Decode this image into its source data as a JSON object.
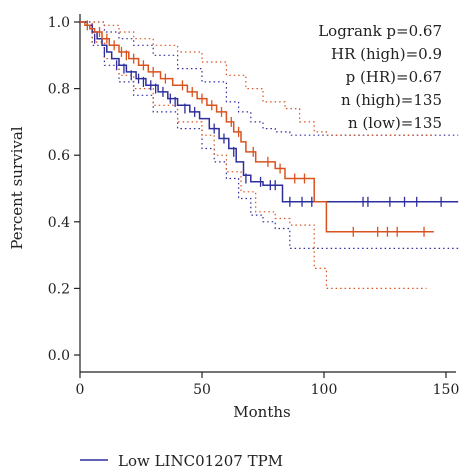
{
  "chart_data": {
    "type": "line",
    "xlabel": "Months",
    "ylabel": "Percent survival",
    "xlim": [
      0,
      150
    ],
    "ylim": [
      0,
      1.0
    ],
    "xticks": [
      0,
      50,
      100,
      150
    ],
    "yticks": [
      0.0,
      0.2,
      0.4,
      0.6,
      0.8,
      1.0
    ],
    "xtick_labels": [
      "0",
      "50",
      "100",
      "150"
    ],
    "ytick_labels": [
      "0.0",
      "0.2",
      "0.4",
      "0.6",
      "0.8",
      "1.0"
    ],
    "annotations": [
      "Logrank p=0.67",
      "HR (high)=0.9",
      "p (HR)=0.67",
      "n (high)=135",
      "n (low)=135"
    ],
    "legend": {
      "entries": [
        "Low LINC01207 TPM"
      ],
      "placement": "bottom"
    },
    "colors": {
      "low": "#2e2e9c",
      "high": "#d9531e",
      "axis": "#222222"
    },
    "series": [
      {
        "name": "Low LINC01207 TPM",
        "color": "#2e2e9c",
        "steps": [
          [
            0,
            1.0
          ],
          [
            3,
            0.99
          ],
          [
            5,
            0.97
          ],
          [
            7,
            0.95
          ],
          [
            9,
            0.93
          ],
          [
            11,
            0.91
          ],
          [
            13,
            0.89
          ],
          [
            16,
            0.87
          ],
          [
            19,
            0.85
          ],
          [
            23,
            0.83
          ],
          [
            27,
            0.81
          ],
          [
            32,
            0.79
          ],
          [
            36,
            0.77
          ],
          [
            40,
            0.75
          ],
          [
            45,
            0.73
          ],
          [
            49,
            0.71
          ],
          [
            53,
            0.68
          ],
          [
            57,
            0.65
          ],
          [
            61,
            0.62
          ],
          [
            64,
            0.58
          ],
          [
            67,
            0.54
          ],
          [
            70,
            0.52
          ],
          [
            75,
            0.51
          ],
          [
            83,
            0.46
          ],
          [
            155,
            0.46
          ]
        ],
        "censored": [
          [
            6,
            0.95
          ],
          [
            10,
            0.91
          ],
          [
            15,
            0.87
          ],
          [
            18,
            0.86
          ],
          [
            21,
            0.84
          ],
          [
            24,
            0.83
          ],
          [
            26,
            0.82
          ],
          [
            29,
            0.81
          ],
          [
            31,
            0.8
          ],
          [
            34,
            0.79
          ],
          [
            37,
            0.77
          ],
          [
            39,
            0.76
          ],
          [
            43,
            0.74
          ],
          [
            47,
            0.73
          ],
          [
            55,
            0.68
          ],
          [
            59,
            0.65
          ],
          [
            63,
            0.61
          ],
          [
            68,
            0.53
          ],
          [
            74,
            0.52
          ],
          [
            78,
            0.51
          ],
          [
            80,
            0.51
          ],
          [
            86,
            0.46
          ],
          [
            91,
            0.46
          ],
          [
            95,
            0.46
          ],
          [
            116,
            0.46
          ],
          [
            118,
            0.46
          ],
          [
            127,
            0.46
          ],
          [
            133,
            0.46
          ],
          [
            138,
            0.46
          ],
          [
            148,
            0.46
          ]
        ],
        "ci_upper": [
          [
            0,
            1.0
          ],
          [
            5,
            1.0
          ],
          [
            10,
            0.97
          ],
          [
            16,
            0.95
          ],
          [
            22,
            0.93
          ],
          [
            30,
            0.9
          ],
          [
            40,
            0.86
          ],
          [
            50,
            0.82
          ],
          [
            60,
            0.76
          ],
          [
            65,
            0.73
          ],
          [
            70,
            0.7
          ],
          [
            75,
            0.68
          ],
          [
            80,
            0.67
          ],
          [
            86,
            0.66
          ],
          [
            155,
            0.66
          ]
        ],
        "ci_lower": [
          [
            0,
            1.0
          ],
          [
            5,
            0.93
          ],
          [
            10,
            0.87
          ],
          [
            16,
            0.82
          ],
          [
            22,
            0.78
          ],
          [
            30,
            0.73
          ],
          [
            40,
            0.68
          ],
          [
            50,
            0.62
          ],
          [
            55,
            0.58
          ],
          [
            60,
            0.53
          ],
          [
            65,
            0.47
          ],
          [
            70,
            0.42
          ],
          [
            75,
            0.4
          ],
          [
            80,
            0.38
          ],
          [
            86,
            0.32
          ],
          [
            155,
            0.32
          ]
        ]
      },
      {
        "name": "",
        "color": "#d9531e",
        "steps": [
          [
            0,
            1.0
          ],
          [
            2,
            0.99
          ],
          [
            4,
            0.98
          ],
          [
            6,
            0.97
          ],
          [
            9,
            0.95
          ],
          [
            12,
            0.93
          ],
          [
            16,
            0.91
          ],
          [
            20,
            0.89
          ],
          [
            24,
            0.87
          ],
          [
            28,
            0.85
          ],
          [
            33,
            0.83
          ],
          [
            38,
            0.81
          ],
          [
            44,
            0.79
          ],
          [
            48,
            0.77
          ],
          [
            52,
            0.75
          ],
          [
            56,
            0.73
          ],
          [
            60,
            0.7
          ],
          [
            63,
            0.67
          ],
          [
            66,
            0.64
          ],
          [
            68,
            0.61
          ],
          [
            72,
            0.58
          ],
          [
            80,
            0.56
          ],
          [
            84,
            0.53
          ],
          [
            96,
            0.46
          ],
          [
            101,
            0.37
          ],
          [
            145,
            0.37
          ]
        ],
        "censored": [
          [
            3,
            0.99
          ],
          [
            8,
            0.97
          ],
          [
            11,
            0.95
          ],
          [
            14,
            0.93
          ],
          [
            17,
            0.91
          ],
          [
            19,
            0.9
          ],
          [
            22,
            0.89
          ],
          [
            26,
            0.87
          ],
          [
            30,
            0.85
          ],
          [
            35,
            0.83
          ],
          [
            42,
            0.81
          ],
          [
            46,
            0.79
          ],
          [
            50,
            0.77
          ],
          [
            54,
            0.75
          ],
          [
            58,
            0.73
          ],
          [
            62,
            0.7
          ],
          [
            65,
            0.67
          ],
          [
            71,
            0.61
          ],
          [
            77,
            0.58
          ],
          [
            82,
            0.56
          ],
          [
            88,
            0.53
          ],
          [
            92,
            0.53
          ],
          [
            112,
            0.37
          ],
          [
            122,
            0.37
          ],
          [
            126,
            0.37
          ],
          [
            130,
            0.37
          ],
          [
            141,
            0.37
          ]
        ],
        "ci_upper": [
          [
            0,
            1.0
          ],
          [
            5,
            1.0
          ],
          [
            10,
            0.99
          ],
          [
            16,
            0.97
          ],
          [
            22,
            0.95
          ],
          [
            30,
            0.93
          ],
          [
            40,
            0.91
          ],
          [
            50,
            0.88
          ],
          [
            60,
            0.84
          ],
          [
            68,
            0.8
          ],
          [
            75,
            0.76
          ],
          [
            84,
            0.74
          ],
          [
            90,
            0.7
          ],
          [
            96,
            0.67
          ],
          [
            101,
            0.66
          ],
          [
            145,
            0.66
          ]
        ],
        "ci_lower": [
          [
            0,
            1.0
          ],
          [
            5,
            0.94
          ],
          [
            10,
            0.89
          ],
          [
            16,
            0.84
          ],
          [
            22,
            0.8
          ],
          [
            30,
            0.75
          ],
          [
            40,
            0.7
          ],
          [
            50,
            0.66
          ],
          [
            55,
            0.6
          ],
          [
            60,
            0.55
          ],
          [
            66,
            0.49
          ],
          [
            72,
            0.43
          ],
          [
            80,
            0.41
          ],
          [
            86,
            0.39
          ],
          [
            96,
            0.26
          ],
          [
            101,
            0.2
          ],
          [
            142,
            0.2
          ]
        ]
      }
    ]
  }
}
